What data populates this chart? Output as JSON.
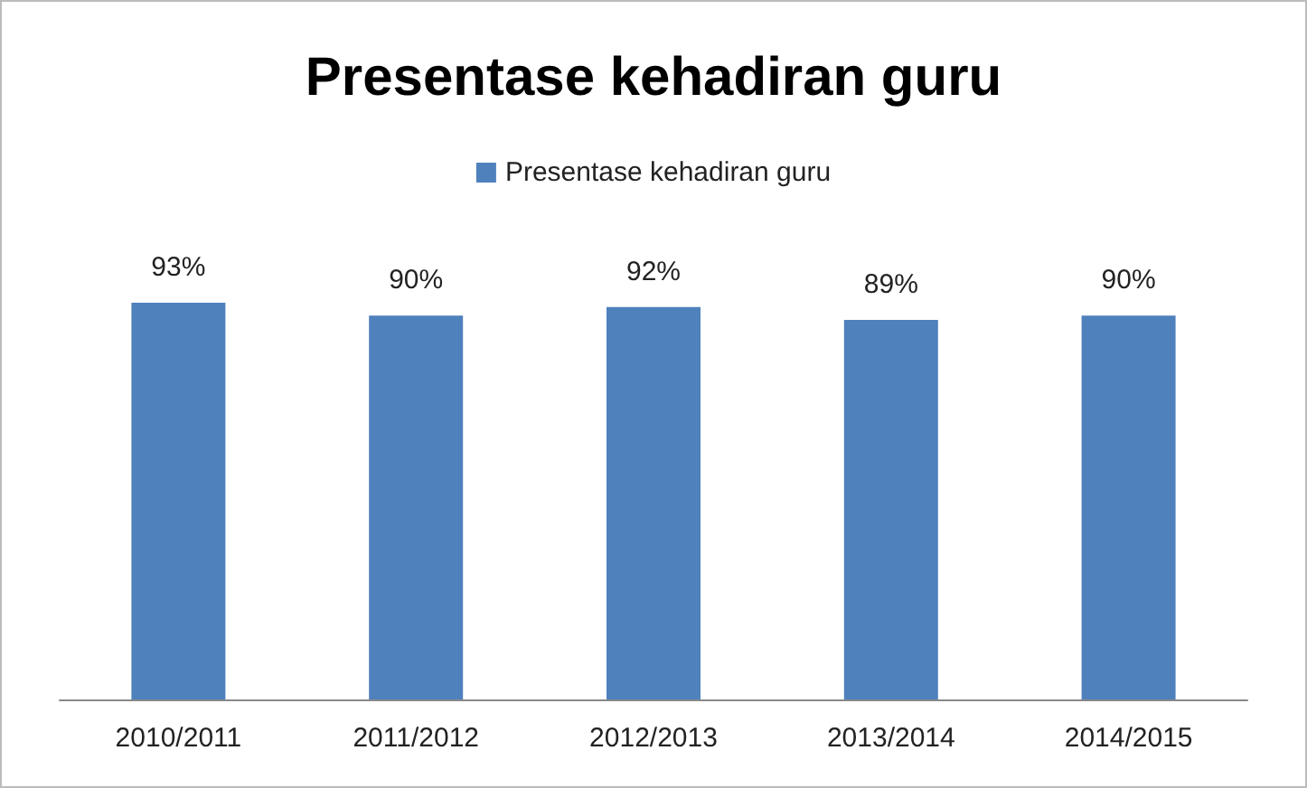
{
  "chart_data": {
    "type": "bar",
    "title": "Presentase kehadiran guru",
    "categories": [
      "2010/2011",
      "2011/2012",
      "2012/2013",
      "2013/2014",
      "2014/2015"
    ],
    "series": [
      {
        "name": "Presentase kehadiran guru",
        "color": "#4f81bd",
        "values": [
          93,
          90,
          92,
          89,
          90
        ],
        "value_labels": [
          "93%",
          "90%",
          "92%",
          "89%",
          "90%"
        ]
      }
    ],
    "legend": "top"
  }
}
